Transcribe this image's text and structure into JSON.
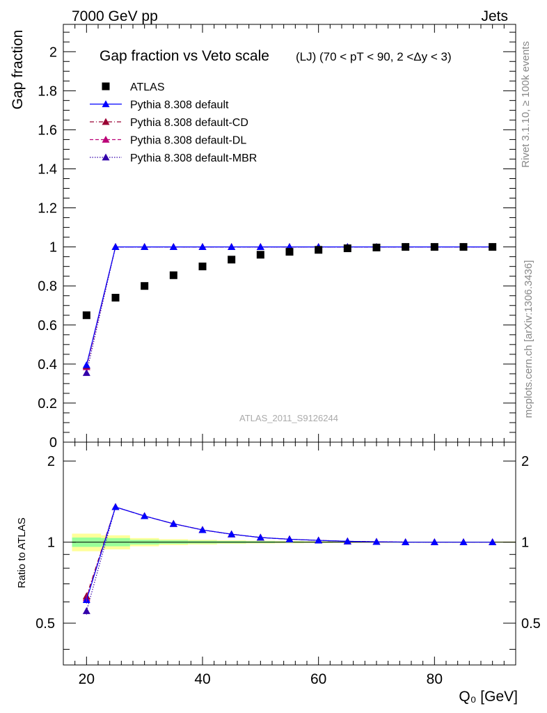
{
  "header": {
    "left": "7000 GeV pp",
    "right": "Jets"
  },
  "side_text": {
    "rivet": "Rivet 3.1.10, ≥ 100k events",
    "source": "mcplots.cern.ch [arXiv:1306.3436]"
  },
  "chart_data": [
    {
      "type": "scatter",
      "title": "Gap fraction vs Veto scale",
      "subtitle": "(LJ) (70 < pT <  90, 2 <Δy < 3)",
      "watermark": "ATLAS_2011_S9126244",
      "xlabel": "Q₀ [GeV]",
      "ylabel": "Gap fraction",
      "xlim": [
        16,
        94
      ],
      "ylim": [
        0,
        2.14
      ],
      "yticks": [
        0,
        0.2,
        0.4,
        0.6,
        0.8,
        1,
        1.2,
        1.4,
        1.6,
        1.8,
        2
      ],
      "ytick_labels": [
        "0",
        "0.2",
        "0.4",
        "0.6",
        "0.8",
        "1",
        "1.2",
        "1.4",
        "1.6",
        "1.8",
        "2"
      ],
      "legend_position": "top-left",
      "x": [
        20,
        25,
        30,
        35,
        40,
        45,
        50,
        55,
        60,
        65,
        70,
        75,
        80,
        85,
        90
      ],
      "series": [
        {
          "name": "ATLAS",
          "style": "data",
          "color": "#000000",
          "values": [
            0.65,
            0.74,
            0.8,
            0.855,
            0.9,
            0.935,
            0.96,
            0.975,
            0.985,
            0.993,
            0.997,
            1.0,
            1.0,
            1.0,
            1.0
          ]
        },
        {
          "name": "Pythia 8.308 default",
          "style": "solid",
          "color": "#0000ff",
          "values": [
            0.395,
            1.0,
            1.0,
            1.0,
            1.0,
            1.0,
            1.0,
            1.0,
            1.0,
            1.0,
            1.0,
            1.0,
            1.0,
            1.0,
            1.0
          ]
        },
        {
          "name": "Pythia 8.308 default-CD",
          "style": "dashdot",
          "color": "#990033",
          "values": [
            0.39,
            1.0,
            1.0,
            1.0,
            1.0,
            1.0,
            1.0,
            1.0,
            1.0,
            1.0,
            1.0,
            1.0,
            1.0,
            1.0,
            1.0
          ]
        },
        {
          "name": "Pythia 8.308 default-DL",
          "style": "dashed",
          "color": "#bb0077",
          "values": [
            0.385,
            1.0,
            1.0,
            1.0,
            1.0,
            1.0,
            1.0,
            1.0,
            1.0,
            1.0,
            1.0,
            1.0,
            1.0,
            1.0,
            1.0
          ]
        },
        {
          "name": "Pythia 8.308 default-MBR",
          "style": "dotted",
          "color": "#3300aa",
          "values": [
            0.355,
            1.0,
            1.0,
            1.0,
            1.0,
            1.0,
            1.0,
            1.0,
            1.0,
            1.0,
            1.0,
            1.0,
            1.0,
            1.0,
            1.0
          ]
        }
      ]
    },
    {
      "type": "line",
      "ylabel": "Ratio to ATLAS",
      "xlim": [
        16,
        94
      ],
      "ylim": [
        0.35,
        2.35
      ],
      "yticks": [
        0.5,
        1,
        2
      ],
      "ytick_labels": [
        "0.5",
        "1",
        "2"
      ],
      "xticks": [
        20,
        40,
        60,
        80
      ],
      "xtick_labels": [
        "20",
        "40",
        "60",
        "80"
      ],
      "uncertainty_band": {
        "x_edges": [
          17.5,
          22.5,
          27.5,
          32.5,
          37.5,
          42.5,
          47.5,
          52.5,
          57.5,
          62.5,
          67.5,
          72.5,
          77.5,
          82.5,
          87.5,
          94
        ],
        "stat_half_width": [
          0.04,
          0.035,
          0.02,
          0.015,
          0.012,
          0.01,
          0.008,
          0.006,
          0.005,
          0.004,
          0.003,
          0.003,
          0.003,
          0.003,
          0.003
        ],
        "total_half_width": [
          0.075,
          0.06,
          0.035,
          0.025,
          0.02,
          0.015,
          0.012,
          0.01,
          0.008,
          0.006,
          0.005,
          0.005,
          0.005,
          0.005,
          0.005
        ],
        "stat_color": "#99ff99",
        "total_color": "#ffff99"
      },
      "reference_line": 1,
      "x": [
        20,
        25,
        30,
        35,
        40,
        45,
        50,
        55,
        60,
        65,
        70,
        75,
        80,
        85,
        90
      ],
      "series": [
        {
          "name": "Pythia 8.308 default",
          "style": "solid",
          "color": "#0000ff",
          "values": [
            0.61,
            1.35,
            1.25,
            1.17,
            1.11,
            1.07,
            1.04,
            1.025,
            1.015,
            1.007,
            1.003,
            1.0,
            1.0,
            1.0,
            1.0
          ]
        },
        {
          "name": "Pythia 8.308 default-CD",
          "style": "dashdot",
          "color": "#990033",
          "values": [
            0.63,
            1.35,
            1.25,
            1.17,
            1.11,
            1.07,
            1.04,
            1.025,
            1.015,
            1.007,
            1.003,
            1.0,
            1.0,
            1.0,
            1.0
          ]
        },
        {
          "name": "Pythia 8.308 default-DL",
          "style": "dashed",
          "color": "#bb0077",
          "values": [
            0.62,
            1.35,
            1.25,
            1.17,
            1.11,
            1.07,
            1.04,
            1.025,
            1.015,
            1.007,
            1.003,
            1.0,
            1.0,
            1.0,
            1.0
          ]
        },
        {
          "name": "Pythia 8.308 default-MBR",
          "style": "dotted",
          "color": "#3300aa",
          "values": [
            0.555,
            1.35,
            1.25,
            1.17,
            1.11,
            1.07,
            1.04,
            1.025,
            1.015,
            1.007,
            1.003,
            1.0,
            1.0,
            1.0,
            1.0
          ]
        }
      ]
    }
  ]
}
